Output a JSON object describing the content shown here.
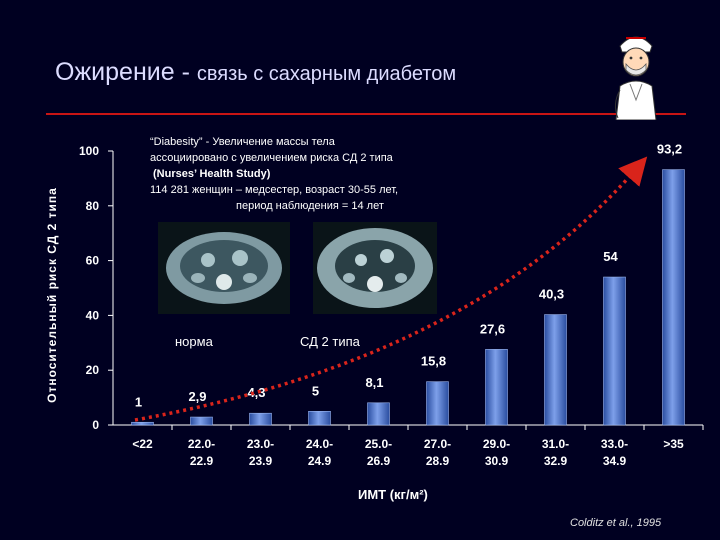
{
  "slide": {
    "title_main": "Ожирение - ",
    "title_sub": "связь с сахарным диабетом",
    "note_lines": [
      "“Diabesity”  - Увеличение массы тела",
      "ассоциировано с увеличением риска СД 2 типа",
      "(Nurses’ Health Study)",
      "114  281 женщин – медсестер,   возраст 30-55 лет,",
      "период наблюдения  = 14 лет"
    ],
    "scan_label_left": "норма",
    "scan_label_right": "СД 2 типа",
    "credit": "Colditz et al., 1995"
  },
  "colors": {
    "background": "#000021",
    "title_rule": "#c81414",
    "bar": "#4a73c8",
    "trend_arrow": "#d9241b",
    "axis": "#ffffff"
  },
  "chart_data": {
    "type": "bar",
    "categories": [
      "<22",
      "22.0-22.9",
      "23.0-23.9",
      "24.0-24.9",
      "25.0-26.9",
      "27.0-28.9",
      "29.0-30.9",
      "31.0-32.9",
      "33.0-34.9",
      ">35"
    ],
    "category_lines": [
      [
        "<22"
      ],
      [
        "22.0-",
        "22.9"
      ],
      [
        "23.0-",
        "23.9"
      ],
      [
        "24.0-",
        "24.9"
      ],
      [
        "25.0-",
        "26.9"
      ],
      [
        "27.0-",
        "28.9"
      ],
      [
        "29.0-",
        "30.9"
      ],
      [
        "31.0-",
        "32.9"
      ],
      [
        "33.0-",
        "34.9"
      ],
      [
        ">35"
      ]
    ],
    "values": [
      1,
      2.9,
      4.3,
      5,
      8.1,
      15.8,
      27.6,
      40.3,
      54,
      93.2
    ],
    "data_labels": [
      "1",
      "2,9",
      "4,3",
      "5",
      "8,1",
      "15,8",
      "27,6",
      "40,3",
      "54",
      "93,2"
    ],
    "ylim": [
      0,
      100
    ],
    "yticks": [
      0,
      20,
      40,
      60,
      80,
      100
    ],
    "xlabel": "ИМТ (кг/м²)",
    "ylabel": "Относительный риск  СД  2 типа",
    "title": "",
    "grid": false,
    "trend_arrow": true
  }
}
